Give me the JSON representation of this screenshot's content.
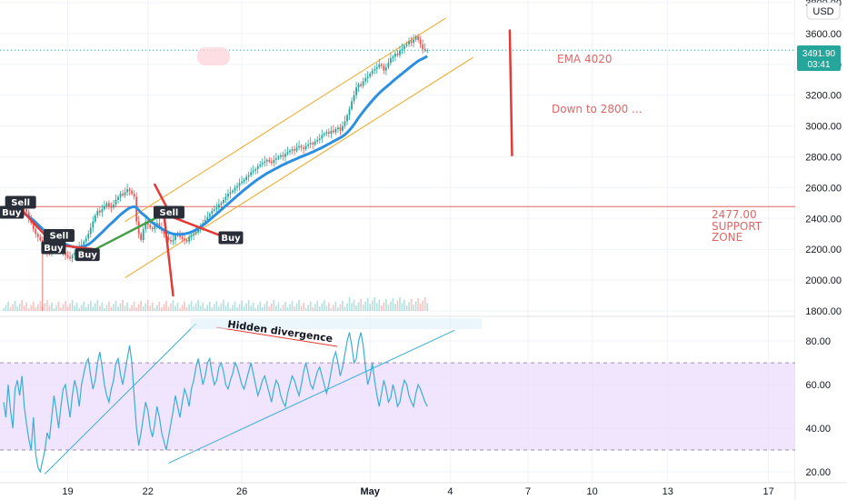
{
  "currency": "USD",
  "price_tag": {
    "value": "3491.90",
    "countdown": "03:41"
  },
  "notes": {
    "ema": "EMA 4020",
    "target": "Down to 2800 ...",
    "support_value": "2477.00",
    "support_l1": "SUPPORT",
    "support_l2": "ZONE",
    "divergence": "Hidden divergence"
  },
  "signals": [
    {
      "label": "Buy",
      "x": 3.5,
      "p": 2440
    },
    {
      "label": "Sell",
      "x": 7.4,
      "p": 2505
    },
    {
      "label": "Sell",
      "x": 24.2,
      "p": 2290
    },
    {
      "label": "Buy",
      "x": 21.8,
      "p": 2210
    },
    {
      "label": "Buy",
      "x": 36.6,
      "p": 2165
    },
    {
      "label": "Sell",
      "x": 72.2,
      "p": 2440
    },
    {
      "label": "Buy",
      "x": 99.2,
      "p": 2275
    }
  ],
  "colors": {
    "up": "#26a69a",
    "down": "#ef5350",
    "ema": "#2d8fe0",
    "rsi": "#3aaed8",
    "band": "#ebdcfb",
    "support": "#e06666"
  },
  "chart_data": [
    {
      "type": "line",
      "pane": "price",
      "x_unit": "bar index (~7 bars per day)",
      "x_ticks": [
        {
          "x": 28,
          "label": "19"
        },
        {
          "x": 63,
          "label": "22"
        },
        {
          "x": 104,
          "label": "26"
        },
        {
          "x": 160,
          "label": "May"
        },
        {
          "x": 195,
          "label": "4"
        },
        {
          "x": 229,
          "label": "7"
        },
        {
          "x": 257,
          "label": "10"
        },
        {
          "x": 290,
          "label": "13"
        },
        {
          "x": 334,
          "label": "17"
        }
      ],
      "ylim": [
        1800,
        3800
      ],
      "y_ticks": [
        1800,
        2000,
        2200,
        2400,
        2600,
        2800,
        3000,
        3200,
        3400,
        3600,
        3800
      ],
      "current_price": 3491.9,
      "support_level": 2477.0,
      "series": [
        {
          "role": "close",
          "values": [
            2440,
            2455,
            2470,
            2460,
            2450,
            2470,
            2480,
            2490,
            2485,
            2460,
            2440,
            2400,
            2370,
            2330,
            2300,
            2280,
            2260,
            2220,
            2200,
            2180,
            2170,
            2200,
            2230,
            2250,
            2220,
            2200,
            2180,
            2160,
            2150,
            2140,
            2160,
            2180,
            2200,
            2220,
            2230,
            2250,
            2270,
            2300,
            2340,
            2380,
            2420,
            2450,
            2440,
            2460,
            2480,
            2500,
            2480,
            2470,
            2490,
            2520,
            2540,
            2560,
            2550,
            2570,
            2590,
            2580,
            2560,
            2540,
            2380,
            2300,
            2260,
            2330,
            2380,
            2360,
            2340,
            2330,
            2360,
            2370,
            2340,
            2320,
            2300,
            2280,
            2260,
            2250,
            2260,
            2290,
            2300,
            2280,
            2270,
            2260,
            2250,
            2280,
            2290,
            2300,
            2310,
            2330,
            2350,
            2370,
            2390,
            2410,
            2430,
            2450,
            2460,
            2470,
            2490,
            2500,
            2520,
            2540,
            2560,
            2570,
            2580,
            2600,
            2610,
            2630,
            2640,
            2650,
            2670,
            2680,
            2700,
            2710,
            2720,
            2740,
            2750,
            2760,
            2770,
            2780,
            2770,
            2760,
            2780,
            2790,
            2800,
            2810,
            2800,
            2820,
            2830,
            2840,
            2850,
            2840,
            2860,
            2870,
            2860,
            2850,
            2870,
            2880,
            2890,
            2880,
            2900,
            2910,
            2920,
            2940,
            2950,
            2960,
            2950,
            2970,
            2960,
            2980,
            2990,
            2970,
            3000,
            3030,
            3070,
            3110,
            3160,
            3200,
            3250,
            3270,
            3260,
            3290,
            3310,
            3320,
            3340,
            3360,
            3370,
            3380,
            3400,
            3390,
            3360,
            3380,
            3410,
            3440,
            3450,
            3470,
            3460,
            3490,
            3500,
            3520,
            3530,
            3550,
            3540,
            3560,
            3580,
            3560,
            3530,
            3500,
            3490,
            3491.9
          ]
        },
        {
          "role": "ema",
          "name": "EMA",
          "values": [
            2450,
            2452,
            2454,
            2450,
            2447,
            2445,
            2448,
            2445,
            2440,
            2432,
            2422,
            2412,
            2400,
            2388,
            2374,
            2360,
            2346,
            2332,
            2318,
            2304,
            2292,
            2280,
            2270,
            2262,
            2255,
            2248,
            2240,
            2233,
            2227,
            2222,
            2217,
            2214,
            2212,
            2212,
            2214,
            2218,
            2224,
            2232,
            2242,
            2254,
            2268,
            2282,
            2296,
            2310,
            2325,
            2340,
            2354,
            2368,
            2382,
            2396,
            2410,
            2424,
            2436,
            2448,
            2459,
            2469,
            2474,
            2476,
            2470,
            2454,
            2438,
            2426,
            2414,
            2400,
            2386,
            2373,
            2362,
            2352,
            2343,
            2334,
            2325,
            2317,
            2310,
            2304,
            2300,
            2298,
            2297,
            2297,
            2298,
            2300,
            2303,
            2307,
            2312,
            2318,
            2326,
            2335,
            2345,
            2356,
            2367,
            2379,
            2391,
            2404,
            2417,
            2430,
            2443,
            2456,
            2469,
            2482,
            2495,
            2508,
            2521,
            2534,
            2547,
            2560,
            2573,
            2585,
            2597,
            2609,
            2621,
            2632,
            2643,
            2654,
            2664,
            2674,
            2684,
            2693,
            2701,
            2709,
            2717,
            2725,
            2733,
            2741,
            2748,
            2755,
            2762,
            2769,
            2776,
            2782,
            2788,
            2795,
            2801,
            2807,
            2813,
            2819,
            2826,
            2832,
            2839,
            2846,
            2853,
            2860,
            2868,
            2876,
            2884,
            2892,
            2900,
            2908,
            2916,
            2924,
            2933,
            2944,
            2957,
            2972,
            2990,
            3010,
            3032,
            3054,
            3074,
            3093,
            3112,
            3130,
            3148,
            3165,
            3182,
            3198,
            3213,
            3227,
            3240,
            3252,
            3265,
            3278,
            3291,
            3304,
            3316,
            3328,
            3340,
            3352,
            3364,
            3376,
            3388,
            3400,
            3411,
            3422,
            3430,
            3437,
            3445,
            3453
          ]
        }
      ]
    },
    {
      "type": "line",
      "pane": "rsi",
      "ylim": [
        15,
        88
      ],
      "y_ticks": [
        20,
        40,
        60,
        80
      ],
      "band": [
        30,
        70
      ],
      "series": [
        {
          "role": "rsi",
          "values": [
            52,
            45,
            60,
            48,
            40,
            58,
            62,
            55,
            64,
            50,
            42,
            35,
            30,
            45,
            28,
            22,
            20,
            25,
            30,
            38,
            35,
            45,
            55,
            48,
            40,
            50,
            58,
            60,
            52,
            45,
            55,
            62,
            58,
            50,
            60,
            65,
            70,
            72,
            64,
            58,
            62,
            70,
            75,
            68,
            60,
            55,
            52,
            58,
            62,
            70,
            72,
            65,
            60,
            66,
            72,
            78,
            70,
            55,
            40,
            32,
            38,
            45,
            52,
            48,
            40,
            36,
            42,
            50,
            45,
            38,
            34,
            30,
            36,
            42,
            48,
            55,
            50,
            45,
            52,
            58,
            55,
            50,
            58,
            62,
            68,
            72,
            66,
            60,
            64,
            70,
            72,
            65,
            60,
            62,
            68,
            70,
            66,
            60,
            58,
            62,
            65,
            70,
            68,
            64,
            60,
            58,
            62,
            66,
            70,
            65,
            60,
            55,
            58,
            62,
            64,
            60,
            56,
            52,
            58,
            62,
            60,
            55,
            52,
            50,
            56,
            60,
            64,
            62,
            58,
            55,
            60,
            66,
            70,
            65,
            60,
            58,
            62,
            66,
            68,
            64,
            60,
            56,
            60,
            66,
            72,
            75,
            70,
            64,
            68,
            74,
            80,
            84,
            78,
            70,
            72,
            80,
            84,
            78,
            68,
            60,
            64,
            70,
            62,
            55,
            50,
            56,
            62,
            58,
            52,
            54,
            60,
            56,
            50,
            52,
            58,
            62,
            60,
            55,
            52,
            50,
            56,
            60,
            58,
            55,
            52,
            50
          ]
        }
      ]
    }
  ]
}
